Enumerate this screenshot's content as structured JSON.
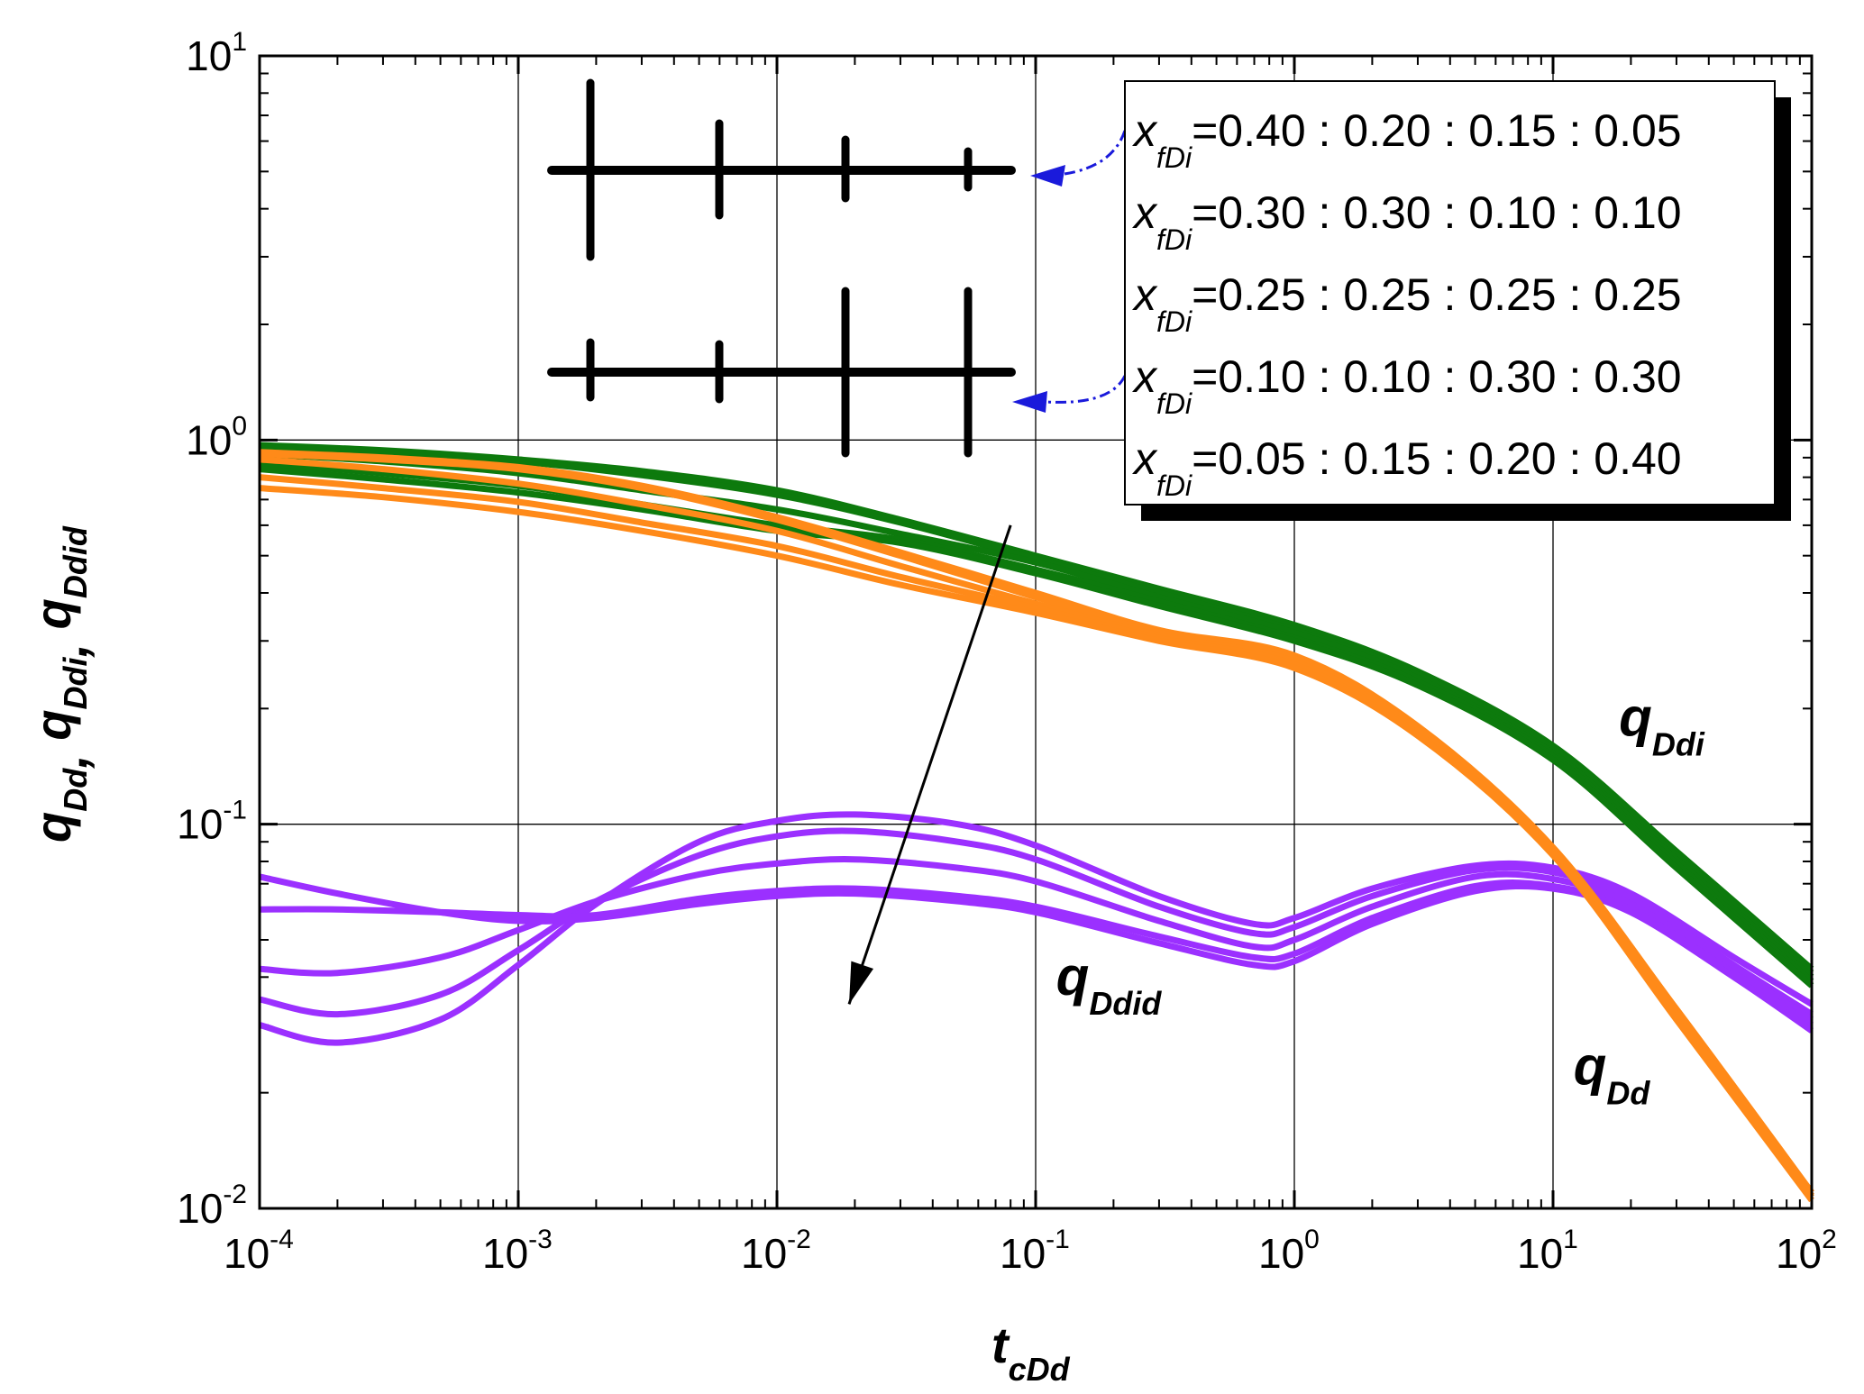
{
  "chart_data": {
    "type": "line",
    "x_scale": "log",
    "y_scale": "log",
    "xlim": [
      0.0001,
      100
    ],
    "ylim": [
      0.01,
      10
    ],
    "grid": true,
    "x_ticks": [
      {
        "base": "10",
        "exp": "-4"
      },
      {
        "base": "10",
        "exp": "-3"
      },
      {
        "base": "10",
        "exp": "-2"
      },
      {
        "base": "10",
        "exp": "-1"
      },
      {
        "base": "10",
        "exp": "0"
      },
      {
        "base": "10",
        "exp": "1"
      },
      {
        "base": "10",
        "exp": "2"
      }
    ],
    "y_ticks": [
      {
        "base": "10",
        "exp": "-2"
      },
      {
        "base": "10",
        "exp": "-1"
      },
      {
        "base": "10",
        "exp": "0"
      },
      {
        "base": "10",
        "exp": "1"
      }
    ],
    "xlabel": {
      "main": "t",
      "sub": "cDd"
    },
    "ylabel": [
      {
        "main": "q",
        "sub": "Dd"
      },
      {
        "main": "q",
        "sub": "Ddi"
      },
      {
        "main": "q",
        "sub": "Ddid"
      }
    ],
    "ylabel_sep": ", ",
    "annotations": [
      {
        "id": "q-ddi",
        "main": "q",
        "sub": "Ddi",
        "x": 18,
        "y": 0.17
      },
      {
        "id": "q-ddid",
        "main": "q",
        "sub": "Ddid",
        "x": 0.12,
        "y": 0.036
      },
      {
        "id": "q-dd",
        "main": "q",
        "sub": "Dd",
        "x": 12,
        "y": 0.021
      }
    ],
    "legend": {
      "placement": "top-right",
      "var": "x",
      "var_sub": "fDi",
      "entries": [
        "=0.40 : 0.20 : 0.15 : 0.05",
        "=0.30 : 0.30 : 0.10 : 0.10",
        "=0.25 : 0.25 : 0.25 : 0.25",
        "=0.10 : 0.10 : 0.30 : 0.30",
        "=0.05 : 0.15 : 0.20 : 0.40"
      ]
    },
    "trend_arrow": {
      "from": [
        0.08,
        0.6
      ],
      "to": [
        0.019,
        0.034
      ]
    },
    "series": [
      {
        "name": "qDdi x=0.40:0.20:0.15:0.05",
        "group": "qDdi",
        "color": "#0d7a0d",
        "x": [
          0.0001,
          0.0003,
          0.001,
          0.003,
          0.01,
          0.03,
          0.1,
          0.3,
          1,
          3,
          10,
          30,
          100
        ],
        "y": [
          0.97,
          0.94,
          0.89,
          0.83,
          0.74,
          0.62,
          0.5,
          0.41,
          0.33,
          0.25,
          0.16,
          0.085,
          0.042
        ]
      },
      {
        "name": "qDdi x=0.30:0.30:0.10:0.10",
        "group": "qDdi",
        "color": "#0d7a0d",
        "x": [
          0.0001,
          0.0003,
          0.001,
          0.003,
          0.01,
          0.03,
          0.1,
          0.3,
          1,
          3,
          10,
          30,
          100
        ],
        "y": [
          0.96,
          0.93,
          0.88,
          0.81,
          0.72,
          0.61,
          0.49,
          0.4,
          0.32,
          0.245,
          0.157,
          0.083,
          0.041
        ]
      },
      {
        "name": "qDdi x=0.25:0.25:0.25:0.25",
        "group": "qDdi",
        "color": "#0d7a0d",
        "x": [
          0.0001,
          0.0003,
          0.001,
          0.003,
          0.01,
          0.03,
          0.1,
          0.3,
          1,
          3,
          10,
          30,
          100
        ],
        "y": [
          0.92,
          0.88,
          0.82,
          0.74,
          0.66,
          0.57,
          0.48,
          0.39,
          0.315,
          0.24,
          0.153,
          0.081,
          0.04
        ]
      },
      {
        "name": "qDdi x=0.10:0.10:0.30:0.30",
        "group": "qDdi",
        "color": "#0d7a0d",
        "x": [
          0.0001,
          0.0003,
          0.001,
          0.003,
          0.01,
          0.03,
          0.1,
          0.3,
          1,
          3,
          10,
          30,
          100
        ],
        "y": [
          0.87,
          0.82,
          0.76,
          0.68,
          0.6,
          0.55,
          0.46,
          0.38,
          0.305,
          0.235,
          0.15,
          0.079,
          0.039
        ]
      },
      {
        "name": "qDdi x=0.05:0.15:0.20:0.40",
        "group": "qDdi",
        "color": "#0d7a0d",
        "x": [
          0.0001,
          0.0003,
          0.001,
          0.003,
          0.01,
          0.03,
          0.1,
          0.3,
          1,
          3,
          10,
          30,
          100
        ],
        "y": [
          0.84,
          0.79,
          0.73,
          0.66,
          0.58,
          0.54,
          0.45,
          0.37,
          0.3,
          0.23,
          0.147,
          0.077,
          0.038
        ]
      },
      {
        "name": "qDd x=0.40:0.20:0.15:0.05",
        "group": "qDd",
        "color": "#ff8a19",
        "x": [
          0.0001,
          0.0003,
          0.001,
          0.003,
          0.01,
          0.03,
          0.1,
          0.3,
          1,
          3,
          10,
          30,
          100
        ],
        "y": [
          0.93,
          0.9,
          0.85,
          0.76,
          0.63,
          0.51,
          0.4,
          0.32,
          0.275,
          0.18,
          0.087,
          0.033,
          0.011
        ]
      },
      {
        "name": "qDd x=0.30:0.30:0.10:0.10",
        "group": "qDd",
        "color": "#ff8a19",
        "x": [
          0.0001,
          0.0003,
          0.001,
          0.003,
          0.01,
          0.03,
          0.1,
          0.3,
          1,
          3,
          10,
          30,
          100
        ],
        "y": [
          0.92,
          0.89,
          0.84,
          0.75,
          0.62,
          0.5,
          0.39,
          0.315,
          0.27,
          0.177,
          0.086,
          0.033,
          0.011
        ]
      },
      {
        "name": "qDd x=0.25:0.25:0.25:0.25",
        "group": "qDd",
        "color": "#ff8a19",
        "x": [
          0.0001,
          0.0003,
          0.001,
          0.003,
          0.01,
          0.03,
          0.1,
          0.3,
          1,
          3,
          10,
          30,
          100
        ],
        "y": [
          0.89,
          0.84,
          0.77,
          0.68,
          0.58,
          0.47,
          0.375,
          0.31,
          0.265,
          0.175,
          0.085,
          0.032,
          0.0108
        ]
      },
      {
        "name": "qDd x=0.10:0.10:0.30:0.30",
        "group": "qDd",
        "color": "#ff8a19",
        "x": [
          0.0001,
          0.0003,
          0.001,
          0.003,
          0.01,
          0.03,
          0.1,
          0.3,
          1,
          3,
          10,
          30,
          100
        ],
        "y": [
          0.8,
          0.75,
          0.69,
          0.61,
          0.53,
          0.44,
          0.365,
          0.305,
          0.26,
          0.172,
          0.084,
          0.032,
          0.0107
        ]
      },
      {
        "name": "qDd x=0.05:0.15:0.20:0.40",
        "group": "qDd",
        "color": "#ff8a19",
        "x": [
          0.0001,
          0.0003,
          0.001,
          0.003,
          0.01,
          0.03,
          0.1,
          0.3,
          1,
          3,
          10,
          30,
          100
        ],
        "y": [
          0.75,
          0.71,
          0.65,
          0.58,
          0.5,
          0.42,
          0.355,
          0.3,
          0.255,
          0.17,
          0.083,
          0.031,
          0.0105
        ]
      },
      {
        "name": "qDdid x=0.40:0.20:0.15:0.05",
        "group": "qDdid",
        "color": "#9b30ff",
        "x": [
          0.0001,
          0.0002,
          0.0005,
          0.001,
          0.002,
          0.005,
          0.01,
          0.02,
          0.05,
          0.1,
          0.3,
          0.7,
          1,
          2,
          5,
          10,
          20,
          50,
          100
        ],
        "y": [
          0.03,
          0.027,
          0.031,
          0.043,
          0.062,
          0.09,
          0.102,
          0.106,
          0.1,
          0.088,
          0.065,
          0.055,
          0.057,
          0.068,
          0.078,
          0.077,
          0.066,
          0.045,
          0.034
        ]
      },
      {
        "name": "qDdid x=0.30:0.30:0.10:0.10",
        "group": "qDdid",
        "color": "#9b30ff",
        "x": [
          0.0001,
          0.0002,
          0.0005,
          0.001,
          0.002,
          0.005,
          0.01,
          0.02,
          0.05,
          0.1,
          0.3,
          0.7,
          1,
          2,
          5,
          10,
          20,
          50,
          100
        ],
        "y": [
          0.035,
          0.032,
          0.036,
          0.047,
          0.063,
          0.083,
          0.093,
          0.096,
          0.09,
          0.081,
          0.061,
          0.052,
          0.054,
          0.065,
          0.076,
          0.075,
          0.064,
          0.043,
          0.032
        ]
      },
      {
        "name": "qDdid x=0.25:0.25:0.25:0.25",
        "group": "qDdid",
        "color": "#9b30ff",
        "x": [
          0.0001,
          0.0002,
          0.0005,
          0.001,
          0.002,
          0.005,
          0.01,
          0.02,
          0.05,
          0.1,
          0.3,
          0.7,
          1,
          2,
          5,
          10,
          20,
          50,
          100
        ],
        "y": [
          0.042,
          0.041,
          0.045,
          0.053,
          0.063,
          0.074,
          0.079,
          0.081,
          0.077,
          0.071,
          0.056,
          0.048,
          0.05,
          0.061,
          0.073,
          0.072,
          0.062,
          0.042,
          0.031
        ]
      },
      {
        "name": "qDdid x=0.10:0.10:0.30:0.30",
        "group": "qDdid",
        "color": "#9b30ff",
        "x": [
          0.0001,
          0.0002,
          0.0005,
          0.001,
          0.002,
          0.005,
          0.01,
          0.02,
          0.05,
          0.1,
          0.3,
          0.7,
          1,
          2,
          5,
          10,
          20,
          50,
          100
        ],
        "y": [
          0.06,
          0.06,
          0.059,
          0.058,
          0.058,
          0.064,
          0.067,
          0.068,
          0.065,
          0.061,
          0.051,
          0.045,
          0.046,
          0.057,
          0.069,
          0.069,
          0.06,
          0.041,
          0.03
        ]
      },
      {
        "name": "qDdid x=0.05:0.15:0.20:0.40",
        "group": "qDdid",
        "color": "#9b30ff",
        "x": [
          0.0001,
          0.0002,
          0.0005,
          0.001,
          0.002,
          0.005,
          0.01,
          0.02,
          0.05,
          0.1,
          0.3,
          0.7,
          1,
          2,
          5,
          10,
          20,
          50,
          100
        ],
        "y": [
          0.073,
          0.066,
          0.059,
          0.056,
          0.057,
          0.062,
          0.065,
          0.066,
          0.063,
          0.059,
          0.049,
          0.043,
          0.044,
          0.055,
          0.067,
          0.068,
          0.059,
          0.04,
          0.029
        ]
      }
    ]
  }
}
